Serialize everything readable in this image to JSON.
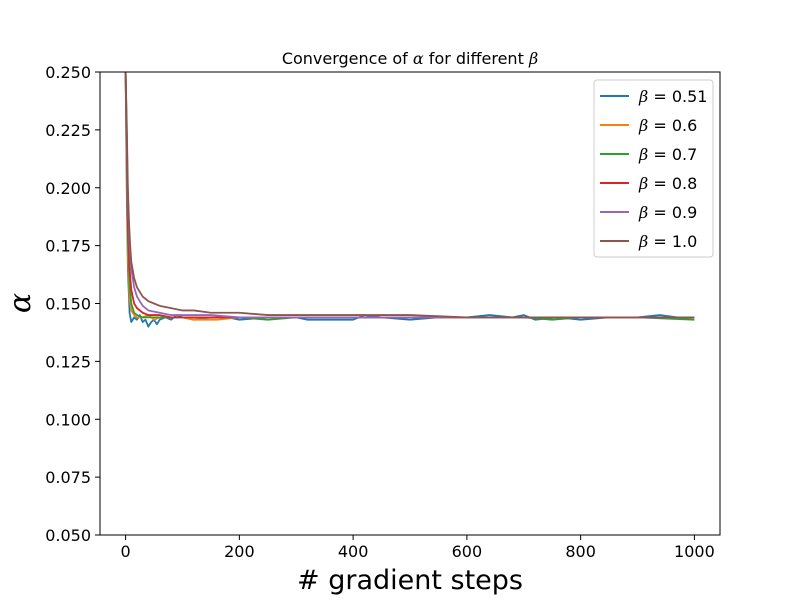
{
  "chart_data": {
    "type": "line",
    "title": "Convergence of α for different β",
    "title_parts": [
      "Convergence of ",
      "α",
      " for different ",
      "β"
    ],
    "xlabel": "# gradient steps",
    "ylabel": "α",
    "xlim": [
      -45,
      1045
    ],
    "ylim": [
      0.05,
      0.25
    ],
    "xticks": [
      0,
      200,
      400,
      600,
      800,
      1000
    ],
    "xtick_labels": [
      "0",
      "200",
      "400",
      "600",
      "800",
      "1000"
    ],
    "yticks": [
      0.05,
      0.075,
      0.1,
      0.125,
      0.15,
      0.175,
      0.2,
      0.225,
      0.25
    ],
    "ytick_labels": [
      "0.050",
      "0.075",
      "0.100",
      "0.125",
      "0.150",
      "0.175",
      "0.200",
      "0.225",
      "0.250"
    ],
    "grid": false,
    "legend_position": "upper right",
    "legend_symbol": "β",
    "series": [
      {
        "name": "β = 0.51",
        "label_value": "0.51",
        "color": "#1f77b4",
        "points": [
          [
            0,
            0.25
          ],
          [
            2,
            0.2
          ],
          [
            4,
            0.165
          ],
          [
            7,
            0.146
          ],
          [
            10,
            0.142
          ],
          [
            15,
            0.144
          ],
          [
            20,
            0.143
          ],
          [
            25,
            0.145
          ],
          [
            30,
            0.142
          ],
          [
            35,
            0.143
          ],
          [
            40,
            0.14
          ],
          [
            45,
            0.142
          ],
          [
            50,
            0.143
          ],
          [
            55,
            0.141
          ],
          [
            60,
            0.143
          ],
          [
            70,
            0.144
          ],
          [
            80,
            0.143
          ],
          [
            90,
            0.145
          ],
          [
            100,
            0.144
          ],
          [
            120,
            0.143
          ],
          [
            150,
            0.144
          ],
          [
            180,
            0.144
          ],
          [
            200,
            0.143
          ],
          [
            250,
            0.144
          ],
          [
            300,
            0.144
          ],
          [
            320,
            0.143
          ],
          [
            350,
            0.143
          ],
          [
            400,
            0.143
          ],
          [
            420,
            0.145
          ],
          [
            450,
            0.144
          ],
          [
            500,
            0.143
          ],
          [
            550,
            0.144
          ],
          [
            600,
            0.144
          ],
          [
            640,
            0.145
          ],
          [
            680,
            0.144
          ],
          [
            700,
            0.145
          ],
          [
            720,
            0.143
          ],
          [
            760,
            0.144
          ],
          [
            800,
            0.143
          ],
          [
            850,
            0.144
          ],
          [
            900,
            0.144
          ],
          [
            940,
            0.145
          ],
          [
            970,
            0.144
          ],
          [
            1000,
            0.144
          ]
        ]
      },
      {
        "name": "β = 0.6",
        "label_value": "0.6",
        "color": "#ff7f0e",
        "points": [
          [
            0,
            0.25
          ],
          [
            2,
            0.21
          ],
          [
            4,
            0.17
          ],
          [
            7,
            0.152
          ],
          [
            10,
            0.147
          ],
          [
            15,
            0.145
          ],
          [
            20,
            0.144
          ],
          [
            30,
            0.144
          ],
          [
            40,
            0.145
          ],
          [
            50,
            0.143
          ],
          [
            60,
            0.144
          ],
          [
            80,
            0.144
          ],
          [
            100,
            0.144
          ],
          [
            120,
            0.143
          ],
          [
            140,
            0.143
          ],
          [
            160,
            0.143
          ],
          [
            200,
            0.144
          ],
          [
            250,
            0.144
          ],
          [
            300,
            0.144
          ],
          [
            400,
            0.144
          ],
          [
            500,
            0.144
          ],
          [
            600,
            0.144
          ],
          [
            700,
            0.144
          ],
          [
            800,
            0.144
          ],
          [
            900,
            0.144
          ],
          [
            1000,
            0.144
          ]
        ]
      },
      {
        "name": "β = 0.7",
        "label_value": "0.7",
        "color": "#2ca02c",
        "points": [
          [
            0,
            0.25
          ],
          [
            2,
            0.215
          ],
          [
            4,
            0.178
          ],
          [
            7,
            0.158
          ],
          [
            10,
            0.15
          ],
          [
            15,
            0.146
          ],
          [
            20,
            0.145
          ],
          [
            30,
            0.144
          ],
          [
            40,
            0.144
          ],
          [
            60,
            0.144
          ],
          [
            100,
            0.144
          ],
          [
            150,
            0.144
          ],
          [
            200,
            0.144
          ],
          [
            250,
            0.143
          ],
          [
            300,
            0.144
          ],
          [
            400,
            0.144
          ],
          [
            500,
            0.144
          ],
          [
            600,
            0.144
          ],
          [
            700,
            0.144
          ],
          [
            750,
            0.143
          ],
          [
            800,
            0.144
          ],
          [
            900,
            0.144
          ],
          [
            1000,
            0.143
          ]
        ]
      },
      {
        "name": "β = 0.8",
        "label_value": "0.8",
        "color": "#d62728",
        "points": [
          [
            0,
            0.25
          ],
          [
            2,
            0.22
          ],
          [
            4,
            0.185
          ],
          [
            7,
            0.165
          ],
          [
            10,
            0.156
          ],
          [
            15,
            0.15
          ],
          [
            20,
            0.148
          ],
          [
            30,
            0.146
          ],
          [
            40,
            0.145
          ],
          [
            60,
            0.145
          ],
          [
            80,
            0.144
          ],
          [
            100,
            0.144
          ],
          [
            150,
            0.144
          ],
          [
            200,
            0.144
          ],
          [
            300,
            0.144
          ],
          [
            400,
            0.144
          ],
          [
            500,
            0.144
          ],
          [
            600,
            0.144
          ],
          [
            700,
            0.144
          ],
          [
            800,
            0.144
          ],
          [
            900,
            0.144
          ],
          [
            1000,
            0.144
          ]
        ]
      },
      {
        "name": "β = 0.9",
        "label_value": "0.9",
        "color": "#9467bd",
        "points": [
          [
            0,
            0.25
          ],
          [
            2,
            0.225
          ],
          [
            4,
            0.195
          ],
          [
            7,
            0.175
          ],
          [
            10,
            0.165
          ],
          [
            15,
            0.157
          ],
          [
            20,
            0.153
          ],
          [
            30,
            0.149
          ],
          [
            40,
            0.147
          ],
          [
            60,
            0.146
          ],
          [
            80,
            0.145
          ],
          [
            100,
            0.145
          ],
          [
            150,
            0.145
          ],
          [
            200,
            0.144
          ],
          [
            300,
            0.144
          ],
          [
            400,
            0.144
          ],
          [
            500,
            0.144
          ],
          [
            600,
            0.144
          ],
          [
            700,
            0.144
          ],
          [
            800,
            0.144
          ],
          [
            900,
            0.144
          ],
          [
            1000,
            0.144
          ]
        ]
      },
      {
        "name": "β = 1.0",
        "label_value": "1.0",
        "color": "#8c564b",
        "points": [
          [
            0,
            0.25
          ],
          [
            2,
            0.228
          ],
          [
            4,
            0.2
          ],
          [
            6,
            0.185
          ],
          [
            8,
            0.175
          ],
          [
            10,
            0.168
          ],
          [
            15,
            0.161
          ],
          [
            20,
            0.157
          ],
          [
            30,
            0.153
          ],
          [
            40,
            0.151
          ],
          [
            50,
            0.15
          ],
          [
            60,
            0.149
          ],
          [
            80,
            0.148
          ],
          [
            100,
            0.147
          ],
          [
            120,
            0.147
          ],
          [
            150,
            0.146
          ],
          [
            200,
            0.146
          ],
          [
            250,
            0.145
          ],
          [
            300,
            0.145
          ],
          [
            400,
            0.145
          ],
          [
            500,
            0.145
          ],
          [
            600,
            0.144
          ],
          [
            700,
            0.144
          ],
          [
            800,
            0.144
          ],
          [
            900,
            0.144
          ],
          [
            1000,
            0.144
          ]
        ]
      }
    ]
  }
}
